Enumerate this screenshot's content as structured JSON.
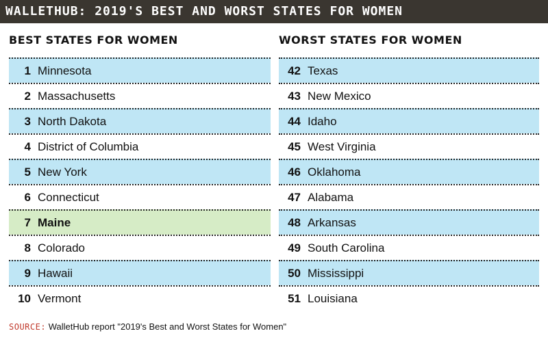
{
  "header": {
    "title": "WALLETHUB: 2019'S BEST AND WORST STATES FOR WOMEN"
  },
  "colors": {
    "highlight_blue": "#bfe6f5",
    "highlight_green": "#d6ecc6",
    "banner": "#3a3630",
    "source_label": "#c0392b"
  },
  "chart_data": {
    "type": "table",
    "title": "WALLETHUB: 2019'S BEST AND WORST STATES FOR WOMEN",
    "best": {
      "heading": "BEST STATES FOR WOMEN",
      "rows": [
        {
          "rank": "1",
          "state": "Minnesota"
        },
        {
          "rank": "2",
          "state": "Massachusetts"
        },
        {
          "rank": "3",
          "state": "North Dakota"
        },
        {
          "rank": "4",
          "state": "District of Columbia"
        },
        {
          "rank": "5",
          "state": "New York"
        },
        {
          "rank": "6",
          "state": "Connecticut"
        },
        {
          "rank": "7",
          "state": "Maine"
        },
        {
          "rank": "8",
          "state": "Colorado"
        },
        {
          "rank": "9",
          "state": "Hawaii"
        },
        {
          "rank": "10",
          "state": "Vermont"
        }
      ]
    },
    "worst": {
      "heading": "WORST STATES FOR WOMEN",
      "rows": [
        {
          "rank": "42",
          "state": "Texas"
        },
        {
          "rank": "43",
          "state": "New Mexico"
        },
        {
          "rank": "44",
          "state": "Idaho"
        },
        {
          "rank": "45",
          "state": "West Virginia"
        },
        {
          "rank": "46",
          "state": "Oklahoma"
        },
        {
          "rank": "47",
          "state": "Alabama"
        },
        {
          "rank": "48",
          "state": "Arkansas"
        },
        {
          "rank": "49",
          "state": "South Carolina"
        },
        {
          "rank": "50",
          "state": "Mississippi"
        },
        {
          "rank": "51",
          "state": "Louisiana"
        }
      ]
    },
    "highlighted_state": "Maine"
  },
  "footer": {
    "source_label": "SOURCE:",
    "source_text": "WalletHub report \"2019's Best and Worst States for Women\""
  }
}
